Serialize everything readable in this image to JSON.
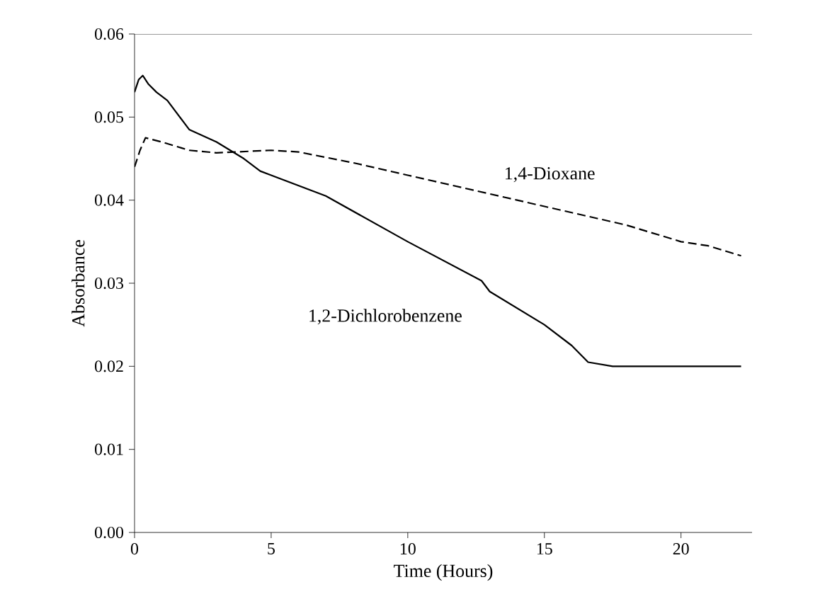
{
  "chart_data": {
    "type": "line",
    "xlabel": "Time (Hours)",
    "ylabel": "Absorbance",
    "xlim": [
      0,
      22.6
    ],
    "xticks": [
      0,
      5,
      10,
      15,
      20
    ],
    "ylim": [
      0,
      0.06
    ],
    "yticks": [
      {
        "value": 0,
        "label": "0.00"
      },
      {
        "value": 0.01,
        "label": "0.01"
      },
      {
        "value": 0.02,
        "label": "0.02"
      },
      {
        "value": 0.03,
        "label": "0.03"
      },
      {
        "value": 0.04,
        "label": "0.04"
      },
      {
        "value": 0.05,
        "label": "0.05"
      },
      {
        "value": 0.06,
        "label": "0.06"
      }
    ],
    "grid": false,
    "marker": "none",
    "series": [
      {
        "name": "1,2-Dichlorobenzene",
        "color": "#000000",
        "line_style": "solid",
        "x": [
          0,
          0.15,
          0.3,
          0.5,
          0.8,
          1.2,
          2,
          3,
          4,
          4.6,
          5,
          7,
          10,
          12.7,
          13,
          15,
          16,
          16.6,
          17.5,
          19,
          21,
          22.2
        ],
        "values": [
          0.053,
          0.0545,
          0.055,
          0.054,
          0.053,
          0.052,
          0.0485,
          0.047,
          0.045,
          0.0435,
          0.043,
          0.0405,
          0.035,
          0.0303,
          0.029,
          0.025,
          0.0225,
          0.0205,
          0.02,
          0.02,
          0.02,
          0.02
        ]
      },
      {
        "name": "1,4-Dioxane",
        "color": "#000000",
        "line_style": "dashed",
        "x": [
          0,
          0.2,
          0.4,
          1,
          2,
          3,
          5,
          6,
          8,
          10,
          12,
          14,
          16,
          18,
          20,
          21,
          22.2
        ],
        "values": [
          0.044,
          0.046,
          0.0475,
          0.047,
          0.046,
          0.0457,
          0.046,
          0.0458,
          0.0445,
          0.043,
          0.0415,
          0.04,
          0.0385,
          0.037,
          0.035,
          0.0345,
          0.0333
        ]
      }
    ]
  }
}
